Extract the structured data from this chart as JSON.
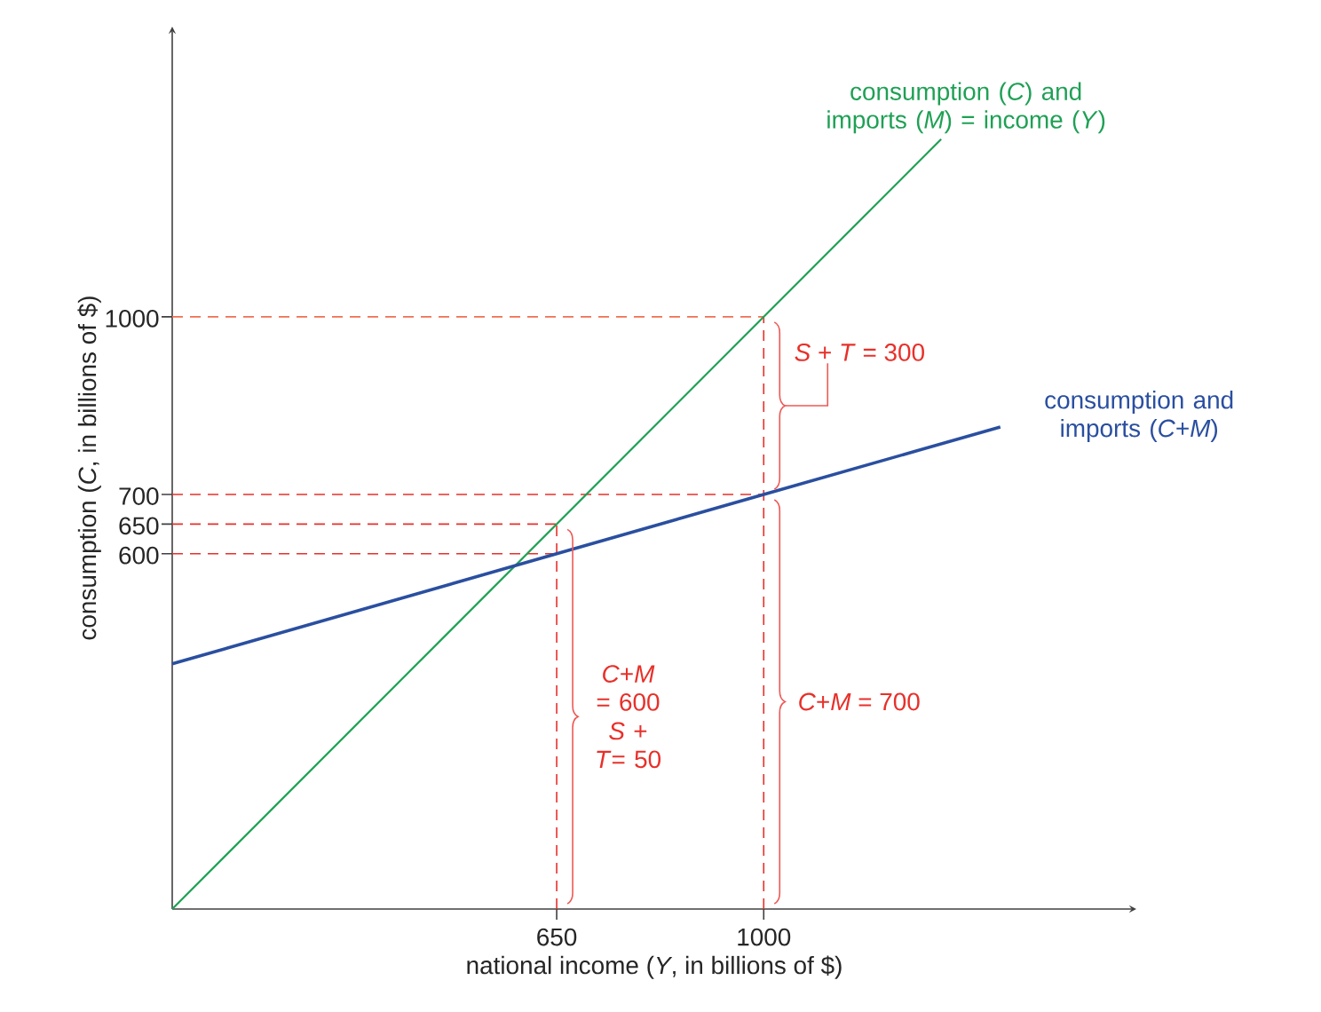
{
  "chart_data": {
    "type": "line",
    "xlabel": "national income (*Y*, in billions of $)",
    "ylabel": "consumption (*C*, in billions of $)",
    "xlim": [
      0,
      1630
    ],
    "ylim": [
      0,
      1490
    ],
    "xticks": [
      650,
      1000
    ],
    "yticks": [
      600,
      650,
      700,
      1000
    ],
    "series": [
      {
        "name": "consumption (*C*) and imports (*M*) = income (*Y*)",
        "color": "#1fa055",
        "x": [
          0,
          1300
        ],
        "values": [
          0,
          1300
        ]
      },
      {
        "name": "consumption and imports (*C*+*M*)",
        "color": "#2a4fa0",
        "x": [
          0,
          650,
          1000,
          1400
        ],
        "values": [
          414,
          600,
          700,
          814
        ]
      }
    ],
    "ref_lines": [
      {
        "axis": "x",
        "value": 650,
        "color": "#e8302a",
        "line_style": "dashed"
      },
      {
        "axis": "x",
        "value": 1000,
        "color": "#e8302a",
        "line_style": "dashed"
      },
      {
        "axis": "y",
        "value": 1000,
        "color": "#f07050",
        "line_style": "dashed"
      },
      {
        "axis": "y",
        "value": 700,
        "color": "#e8302a",
        "line_style": "dashed"
      },
      {
        "axis": "y",
        "value": 650,
        "color": "#e8302a",
        "line_style": "dashed"
      },
      {
        "axis": "y",
        "value": 600,
        "color": "#e8302a",
        "line_style": "dashed"
      }
    ],
    "annotations": [
      {
        "text": "*S* + *T* = 300",
        "x": 1000,
        "y": 850
      },
      "*C*+*M* = 700",
      "*C*+*M* = 600",
      "*S* + *T*= 50"
    ],
    "marker": "none",
    "line_style": "solid"
  }
}
